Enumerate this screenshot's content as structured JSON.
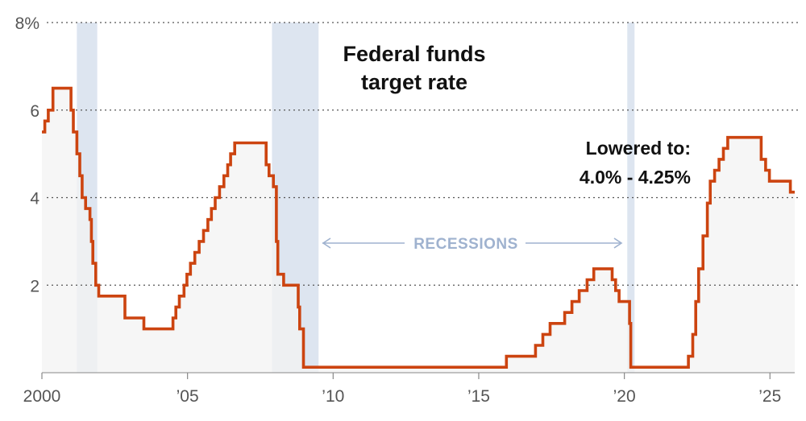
{
  "chart_data": {
    "type": "line",
    "title": [
      "Federal funds",
      "target rate"
    ],
    "xlabel": "",
    "ylabel": "",
    "xlim": [
      2000,
      2025.85
    ],
    "ylim": [
      0,
      8
    ],
    "y_ticks": [
      {
        "value": 8,
        "label": "8%"
      },
      {
        "value": 6,
        "label": "6"
      },
      {
        "value": 4,
        "label": "4"
      },
      {
        "value": 2,
        "label": "2"
      }
    ],
    "x_ticks": [
      {
        "value": 2000,
        "label": "2000"
      },
      {
        "value": 2005,
        "label": "’05"
      },
      {
        "value": 2010,
        "label": "’10"
      },
      {
        "value": 2015,
        "label": "’15"
      },
      {
        "value": 2020,
        "label": "’20"
      },
      {
        "value": 2025,
        "label": "’25"
      }
    ],
    "recessions": [
      {
        "start": 2001.2,
        "end": 2001.9
      },
      {
        "start": 2007.9,
        "end": 2009.5
      },
      {
        "start": 2020.1,
        "end": 2020.35
      }
    ],
    "recession_label": "RECESSIONS",
    "annotation": [
      "Lowered to:",
      "4.0% - 4.25%"
    ],
    "colors": {
      "line": "#cc4410",
      "area": "#f3f3f3",
      "recession": "#dde5f0",
      "recession_label": "#9fb2cf",
      "grid": "#555555",
      "axis": "#888888"
    },
    "series": [
      {
        "name": "Federal funds target rate",
        "points": [
          [
            2000.0,
            5.5
          ],
          [
            2000.1,
            5.75
          ],
          [
            2000.22,
            6.0
          ],
          [
            2000.38,
            6.5
          ],
          [
            2001.0,
            6.0
          ],
          [
            2001.08,
            5.5
          ],
          [
            2001.2,
            5.0
          ],
          [
            2001.3,
            4.5
          ],
          [
            2001.38,
            4.0
          ],
          [
            2001.5,
            3.75
          ],
          [
            2001.65,
            3.5
          ],
          [
            2001.7,
            3.0
          ],
          [
            2001.75,
            2.5
          ],
          [
            2001.85,
            2.0
          ],
          [
            2001.95,
            1.75
          ],
          [
            2002.85,
            1.25
          ],
          [
            2003.5,
            1.0
          ],
          [
            2004.5,
            1.25
          ],
          [
            2004.6,
            1.5
          ],
          [
            2004.72,
            1.75
          ],
          [
            2004.88,
            2.0
          ],
          [
            2004.98,
            2.25
          ],
          [
            2005.1,
            2.5
          ],
          [
            2005.25,
            2.75
          ],
          [
            2005.4,
            3.0
          ],
          [
            2005.55,
            3.25
          ],
          [
            2005.7,
            3.5
          ],
          [
            2005.82,
            3.75
          ],
          [
            2005.95,
            4.0
          ],
          [
            2006.1,
            4.25
          ],
          [
            2006.25,
            4.5
          ],
          [
            2006.38,
            4.75
          ],
          [
            2006.48,
            5.0
          ],
          [
            2006.62,
            5.25
          ],
          [
            2007.7,
            4.75
          ],
          [
            2007.8,
            4.5
          ],
          [
            2007.95,
            4.25
          ],
          [
            2008.05,
            3.0
          ],
          [
            2008.1,
            2.25
          ],
          [
            2008.3,
            2.0
          ],
          [
            2008.8,
            1.5
          ],
          [
            2008.85,
            1.0
          ],
          [
            2008.98,
            0.125
          ],
          [
            2015.95,
            0.375
          ],
          [
            2016.95,
            0.625
          ],
          [
            2017.2,
            0.875
          ],
          [
            2017.45,
            1.125
          ],
          [
            2017.95,
            1.375
          ],
          [
            2018.2,
            1.625
          ],
          [
            2018.45,
            1.875
          ],
          [
            2018.72,
            2.125
          ],
          [
            2018.95,
            2.375
          ],
          [
            2019.58,
            2.125
          ],
          [
            2019.7,
            1.875
          ],
          [
            2019.82,
            1.625
          ],
          [
            2020.18,
            1.125
          ],
          [
            2020.22,
            0.125
          ],
          [
            2022.2,
            0.375
          ],
          [
            2022.35,
            0.875
          ],
          [
            2022.45,
            1.625
          ],
          [
            2022.55,
            2.375
          ],
          [
            2022.7,
            3.125
          ],
          [
            2022.85,
            3.875
          ],
          [
            2022.95,
            4.375
          ],
          [
            2023.1,
            4.625
          ],
          [
            2023.25,
            4.875
          ],
          [
            2023.4,
            5.125
          ],
          [
            2023.55,
            5.375
          ],
          [
            2024.7,
            4.875
          ],
          [
            2024.85,
            4.625
          ],
          [
            2024.98,
            4.375
          ],
          [
            2025.7,
            4.125
          ],
          [
            2025.85,
            4.125
          ]
        ]
      }
    ]
  }
}
